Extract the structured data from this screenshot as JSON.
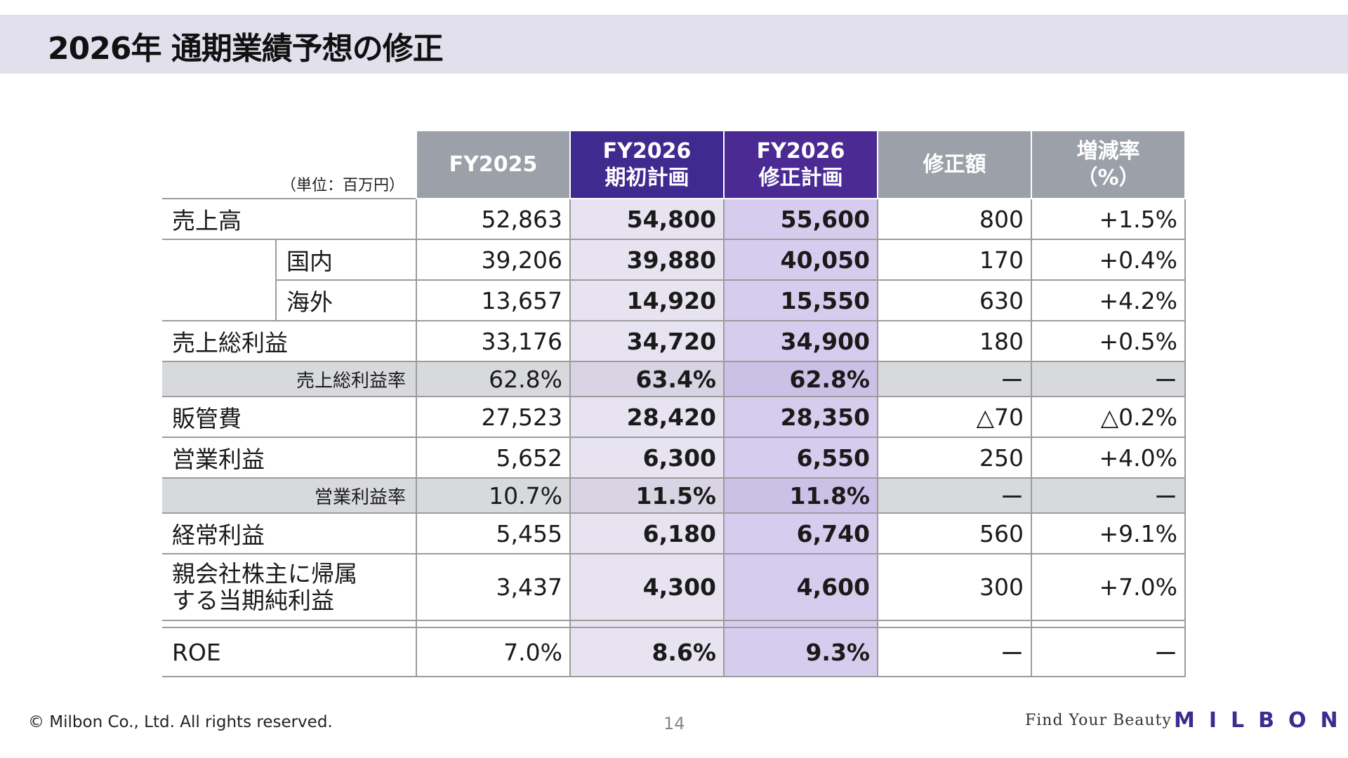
{
  "page": {
    "title": "2026年 通期業績予想の修正",
    "page_number": "14",
    "copyright": "© Milbon Co., Ltd. All rights reserved.",
    "tagline": "Find Your Beauty",
    "logo_text": "MILBON"
  },
  "colors": {
    "title_band": "#e3e0ee",
    "header_gray": "#9ca0a8",
    "header_purple": "#3f2a8f",
    "plan_column": "#e7e3f1",
    "revised_column": "#d6cdee",
    "ratio_row": "#d8d9dc"
  },
  "table": {
    "unit_label": "（単位：百万円）",
    "headers": {
      "fy2025": "FY2025",
      "plan_line1": "FY2026",
      "plan_line2": "期初計画",
      "rev_line1": "FY2026",
      "rev_line2": "修正計画",
      "change": "修正額",
      "rate_line1": "増減率",
      "rate_line2": "（%）"
    },
    "rows": [
      {
        "label": "売上高",
        "fy2025": "52,863",
        "plan": "54,800",
        "revised": "55,600",
        "change": "800",
        "rate": "+1.5%"
      },
      {
        "label": "国内",
        "fy2025": "39,206",
        "plan": "39,880",
        "revised": "40,050",
        "change": "170",
        "rate": "+0.4%"
      },
      {
        "label": "海外",
        "fy2025": "13,657",
        "plan": "14,920",
        "revised": "15,550",
        "change": "630",
        "rate": "+4.2%"
      },
      {
        "label": "売上総利益",
        "fy2025": "33,176",
        "plan": "34,720",
        "revised": "34,900",
        "change": "180",
        "rate": "+0.5%"
      },
      {
        "label": "売上総利益率",
        "fy2025": "62.8%",
        "plan": "63.4%",
        "revised": "62.8%",
        "change": "ー",
        "rate": "ー"
      },
      {
        "label": "販管費",
        "fy2025": "27,523",
        "plan": "28,420",
        "revised": "28,350",
        "change": "△70",
        "rate": "△0.2%"
      },
      {
        "label": "営業利益",
        "fy2025": "5,652",
        "plan": "6,300",
        "revised": "6,550",
        "change": "250",
        "rate": "+4.0%"
      },
      {
        "label": "営業利益率",
        "fy2025": "10.7%",
        "plan": "11.5%",
        "revised": "11.8%",
        "change": "ー",
        "rate": "ー"
      },
      {
        "label": "経常利益",
        "fy2025": "5,455",
        "plan": "6,180",
        "revised": "6,740",
        "change": "560",
        "rate": "+9.1%"
      },
      {
        "label_line1": "親会社株主に帰属",
        "label_line2": "する当期純利益",
        "fy2025": "3,437",
        "plan": "4,300",
        "revised": "4,600",
        "change": "300",
        "rate": "+7.0%"
      },
      {
        "label": "ROE",
        "fy2025": "7.0%",
        "plan": "8.6%",
        "revised": "9.3%",
        "change": "ー",
        "rate": "ー"
      }
    ]
  }
}
